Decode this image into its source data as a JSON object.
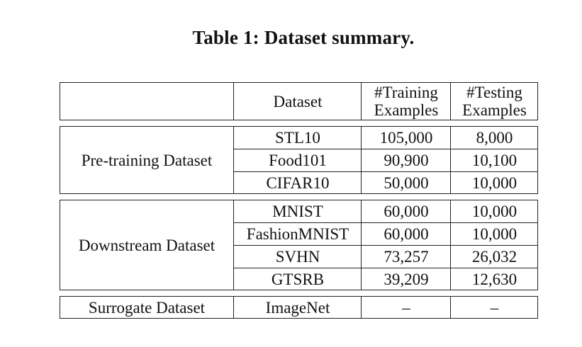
{
  "caption": "Table 1: Dataset summary.",
  "header": {
    "dataset": "Dataset",
    "training_line1": "#Training",
    "training_line2": "Examples",
    "testing_line1": "#Testing",
    "testing_line2": "Examples"
  },
  "groups": [
    {
      "label": "Pre-training Dataset",
      "rows": [
        {
          "dataset": "STL10",
          "training": "105,000",
          "testing": "8,000"
        },
        {
          "dataset": "Food101",
          "training": "90,900",
          "testing": "10,100"
        },
        {
          "dataset": "CIFAR10",
          "training": "50,000",
          "testing": "10,000"
        }
      ]
    },
    {
      "label": "Downstream Dataset",
      "rows": [
        {
          "dataset": "MNIST",
          "training": "60,000",
          "testing": "10,000"
        },
        {
          "dataset": "FashionMNIST",
          "training": "60,000",
          "testing": "10,000"
        },
        {
          "dataset": "SVHN",
          "training": "73,257",
          "testing": "26,032"
        },
        {
          "dataset": "GTSRB",
          "training": "39,209",
          "testing": "12,630"
        }
      ]
    },
    {
      "label": "Surrogate Dataset",
      "rows": [
        {
          "dataset": "ImageNet",
          "training": "–",
          "testing": "–"
        }
      ]
    }
  ]
}
